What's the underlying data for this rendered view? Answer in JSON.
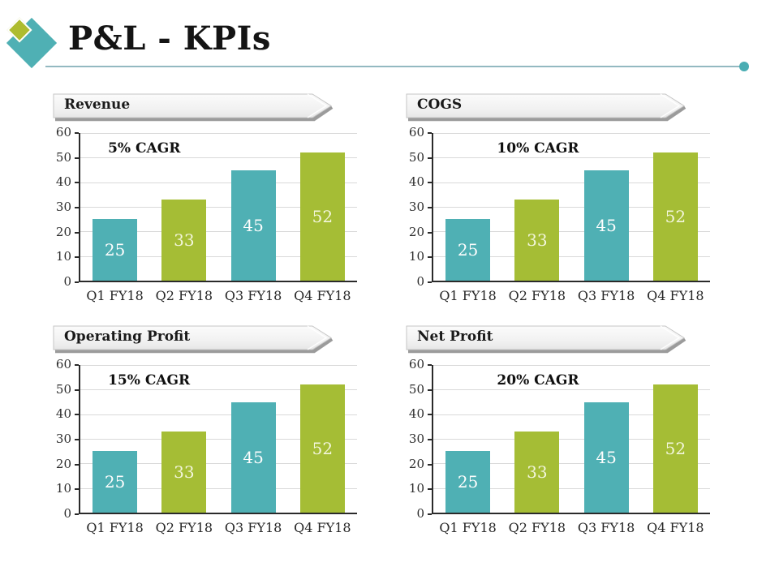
{
  "slide": {
    "title": "P&L - KPIs"
  },
  "colors": {
    "bar_teal": "#4fb0b4",
    "bar_olive": "#a5bd35",
    "label_on_teal": "#fdfdfd",
    "label_on_olive": "#f3f6dc",
    "grid_line": "#d9d9d9",
    "axis_line": "#2a2a2a",
    "divider_line": "#93b9c1",
    "divider_dot": "#4aadb3",
    "logo_teal": "#4fb0b4",
    "logo_olive": "#aebc2f"
  },
  "chart_data": [
    {
      "type": "bar",
      "title": "Revenue",
      "annotation": "5% CAGR",
      "categories": [
        "Q1 FY18",
        "Q2 FY18",
        "Q3 FY18",
        "Q4 FY18"
      ],
      "values": [
        25,
        33,
        45,
        52
      ],
      "ylim": [
        0,
        60
      ],
      "yticks": [
        0,
        10,
        20,
        30,
        40,
        50,
        60
      ],
      "grid": true,
      "legend": "none",
      "bar_fills": [
        "teal",
        "olive",
        "teal",
        "olive-dotted"
      ]
    },
    {
      "type": "bar",
      "title": "COGS",
      "annotation": "10% CAGR",
      "categories": [
        "Q1 FY18",
        "Q2 FY18",
        "Q3 FY18",
        "Q4 FY18"
      ],
      "values": [
        25,
        33,
        45,
        52
      ],
      "ylim": [
        0,
        60
      ],
      "yticks": [
        0,
        10,
        20,
        30,
        40,
        50,
        60
      ],
      "grid": true,
      "legend": "none",
      "bar_fills": [
        "teal",
        "olive",
        "teal",
        "olive-dotted"
      ]
    },
    {
      "type": "bar",
      "title": "Operating Profit",
      "annotation": "15% CAGR",
      "categories": [
        "Q1 FY18",
        "Q2 FY18",
        "Q3 FY18",
        "Q4 FY18"
      ],
      "values": [
        25,
        33,
        45,
        52
      ],
      "ylim": [
        0,
        60
      ],
      "yticks": [
        0,
        10,
        20,
        30,
        40,
        50,
        60
      ],
      "grid": true,
      "legend": "none",
      "bar_fills": [
        "teal",
        "olive",
        "teal",
        "olive-dotted"
      ]
    },
    {
      "type": "bar",
      "title": "Net Profit",
      "annotation": "20% CAGR",
      "categories": [
        "Q1 FY18",
        "Q2 FY18",
        "Q3 FY18",
        "Q4 FY18"
      ],
      "values": [
        25,
        33,
        45,
        52
      ],
      "ylim": [
        0,
        60
      ],
      "yticks": [
        0,
        10,
        20,
        30,
        40,
        50,
        60
      ],
      "grid": true,
      "legend": "none",
      "bar_fills": [
        "teal",
        "olive",
        "teal",
        "olive-dotted"
      ]
    }
  ]
}
